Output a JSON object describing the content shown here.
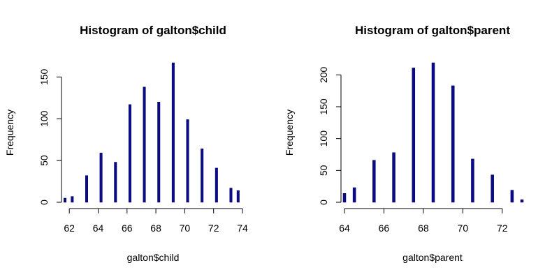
{
  "chart_data": [
    {
      "type": "bar",
      "title": "Histogram of galton$child",
      "xlabel": "galton$child",
      "ylabel": "Frequency",
      "x": [
        61.7,
        62.2,
        63.2,
        64.2,
        65.2,
        66.2,
        67.2,
        68.2,
        69.2,
        70.2,
        71.2,
        72.2,
        73.2,
        73.7
      ],
      "values": [
        5,
        7,
        32,
        59,
        48,
        117,
        138,
        120,
        167,
        99,
        64,
        41,
        17,
        14
      ],
      "xlim": [
        61.7,
        74
      ],
      "ylim": [
        0,
        167
      ],
      "x_ticks": [
        "62",
        "64",
        "66",
        "68",
        "70",
        "72",
        "74"
      ],
      "y_ticks": [
        "0",
        "50",
        "100",
        "150"
      ],
      "grid": false,
      "colors": {
        "bar": "#0a0a8c"
      }
    },
    {
      "type": "bar",
      "title": "Histogram of galton$parent",
      "xlabel": "galton$parent",
      "ylabel": "Frequency",
      "x": [
        64.0,
        64.5,
        65.5,
        66.5,
        67.5,
        68.5,
        69.5,
        70.5,
        71.5,
        72.5,
        73.0
      ],
      "values": [
        14,
        23,
        66,
        78,
        211,
        219,
        183,
        68,
        43,
        19,
        4
      ],
      "xlim": [
        64,
        73
      ],
      "ylim": [
        0,
        219
      ],
      "x_ticks": [
        "64",
        "66",
        "68",
        "70",
        "72"
      ],
      "y_ticks": [
        "0",
        "50",
        "100",
        "150",
        "200"
      ],
      "grid": false,
      "colors": {
        "bar": "#0a0a8c"
      }
    }
  ]
}
